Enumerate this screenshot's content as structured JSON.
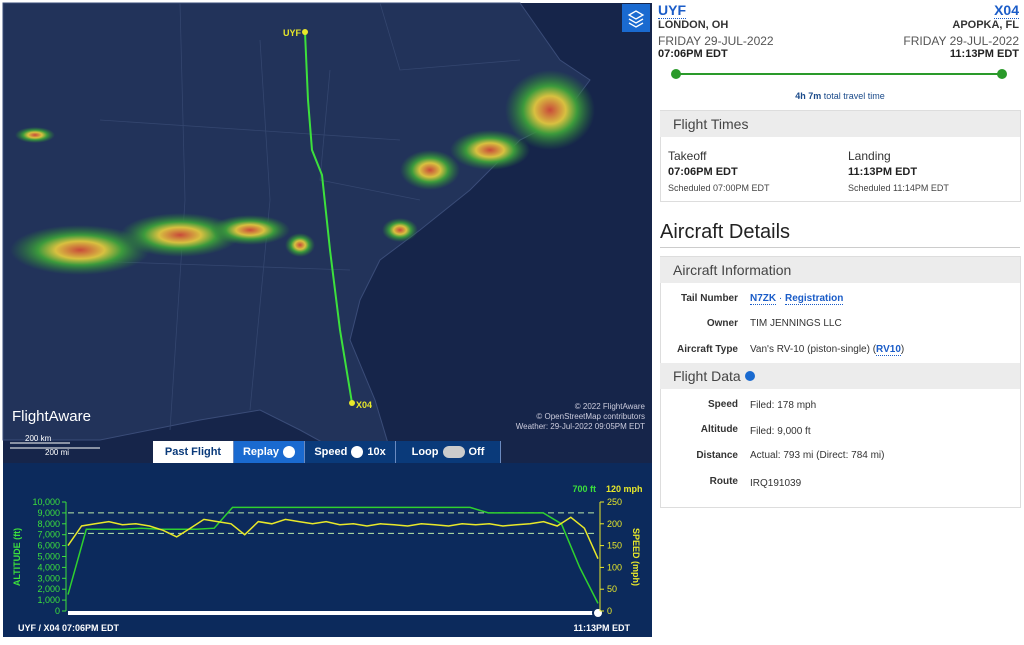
{
  "map": {
    "origin_marker": "UYF",
    "dest_marker": "X04",
    "logo": "FlightAware",
    "scale_km": "200 km",
    "scale_mi": "200 mi",
    "copyright": "© 2022 FlightAware",
    "osm": "© OpenStreetMap contributors",
    "weather": "Weather: 29-Jul-2022 09:05PM EDT"
  },
  "controls": {
    "past": "Past Flight",
    "replay": "Replay",
    "speed": "Speed",
    "speed_value": "10x",
    "loop": "Loop",
    "loop_state": "Off"
  },
  "chart_data": {
    "type": "line",
    "current_altitude": "700 ft",
    "current_speed": "120 mph",
    "ylabel": "ALTITUDE (ft)",
    "y2label": "SPEED (mph)",
    "start_label": "UYF / X04 07:06PM EDT",
    "end_label": "11:13PM EDT",
    "ylim": [
      0,
      10000
    ],
    "yticks": [
      0,
      {
        "value": 1000,
        "label": "1,000"
      },
      {
        "value": 2000,
        "label": "2,000"
      },
      {
        "value": 3000,
        "label": "3,000"
      },
      {
        "value": 4000,
        "label": "4,000"
      },
      {
        "value": 5000,
        "label": "5,000"
      },
      {
        "value": 6000,
        "label": "6,000"
      },
      {
        "value": 7000,
        "label": "7,000"
      },
      {
        "value": 8000,
        "label": "8,000"
      },
      {
        "value": 9000,
        "label": "9,000"
      },
      {
        "value": 10000,
        "label": "10,000"
      }
    ],
    "y2lim": [
      0,
      250
    ],
    "y2ticks": [
      0,
      50,
      100,
      150,
      200,
      250
    ],
    "filed_altitude": 9000,
    "filed_speed": 178,
    "series": [
      {
        "name": "Altitude",
        "color": "#2fd12f",
        "values": [
          1500,
          7500,
          7500,
          7500,
          7600,
          7500,
          7500,
          7500,
          7600,
          9500,
          9500,
          9500,
          9500,
          9500,
          9500,
          9500,
          9500,
          9500,
          9500,
          9500,
          9500,
          9500,
          9500,
          9000,
          9000,
          9000,
          9000,
          8000,
          4000,
          700
        ]
      },
      {
        "name": "Speed",
        "color": "#e8e82a",
        "axis": "y2",
        "values": [
          150,
          195,
          200,
          205,
          198,
          200,
          195,
          185,
          170,
          190,
          210,
          205,
          200,
          175,
          205,
          200,
          210,
          205,
          200,
          205,
          198,
          200,
          195,
          200,
          198,
          195,
          200,
          198,
          195,
          200,
          198,
          200,
          195,
          198,
          200,
          205,
          195,
          215,
          190,
          120
        ]
      }
    ]
  },
  "trip": {
    "origin": "UYF",
    "origin_city": "LONDON, OH",
    "origin_date": "FRIDAY 29-JUL-2022",
    "origin_time": "07:06PM EDT",
    "dest": "X04",
    "dest_city": "APOPKA, FL",
    "dest_date": "FRIDAY 29-JUL-2022",
    "dest_time": "11:13PM EDT",
    "duration": "4h 7m",
    "duration_note": "total travel time"
  },
  "flight_times": {
    "title": "Flight Times",
    "takeoff": "Takeoff",
    "takeoff_time": "07:06PM EDT",
    "takeoff_sched": "Scheduled 07:00PM EDT",
    "landing": "Landing",
    "landing_time": "11:13PM EDT",
    "landing_sched": "Scheduled 11:14PM EDT"
  },
  "aircraft": {
    "title": "Aircraft Details",
    "info_title": "Aircraft Information",
    "tail_label": "Tail Number",
    "tail": "N7ZK",
    "separator": " · ",
    "registration": "Registration",
    "owner_label": "Owner",
    "owner": "TIM JENNINGS LLC",
    "type_label": "Aircraft Type",
    "type_prefix": "Van's RV-10 (piston-single) (",
    "type_code": "RV10",
    "type_suffix": ")"
  },
  "flight_data": {
    "title": "Flight Data",
    "speed_label": "Speed",
    "speed": "Filed: 178 mph",
    "altitude_label": "Altitude",
    "altitude": "Filed: 9,000 ft",
    "distance_label": "Distance",
    "distance": "Actual: 793 mi (Direct: 784 mi)",
    "route_label": "Route",
    "route": "IRQ191039"
  }
}
